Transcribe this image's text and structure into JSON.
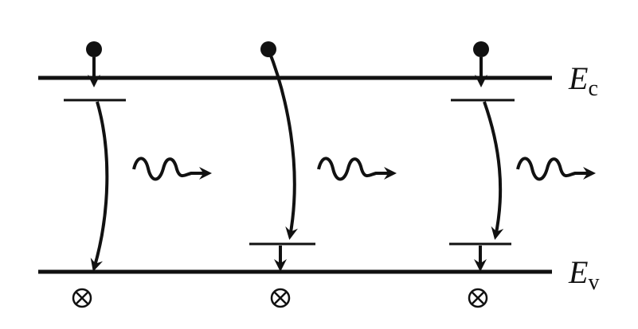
{
  "labels": {
    "conduction_band": {
      "letter": "E",
      "subscript": "c"
    },
    "valence_band": {
      "letter": "E",
      "subscript": "v"
    }
  },
  "transitions": [
    {
      "name": "band-to-impurity-to-band",
      "upper_impurity_level": true,
      "lower_impurity_level": false
    },
    {
      "name": "band-to-acceptor-level",
      "upper_impurity_level": false,
      "lower_impurity_level": true
    },
    {
      "name": "donor-to-acceptor-level",
      "upper_impurity_level": true,
      "lower_impurity_level": true
    }
  ],
  "colors": {
    "ink": "#111111",
    "background": "#ffffff"
  }
}
